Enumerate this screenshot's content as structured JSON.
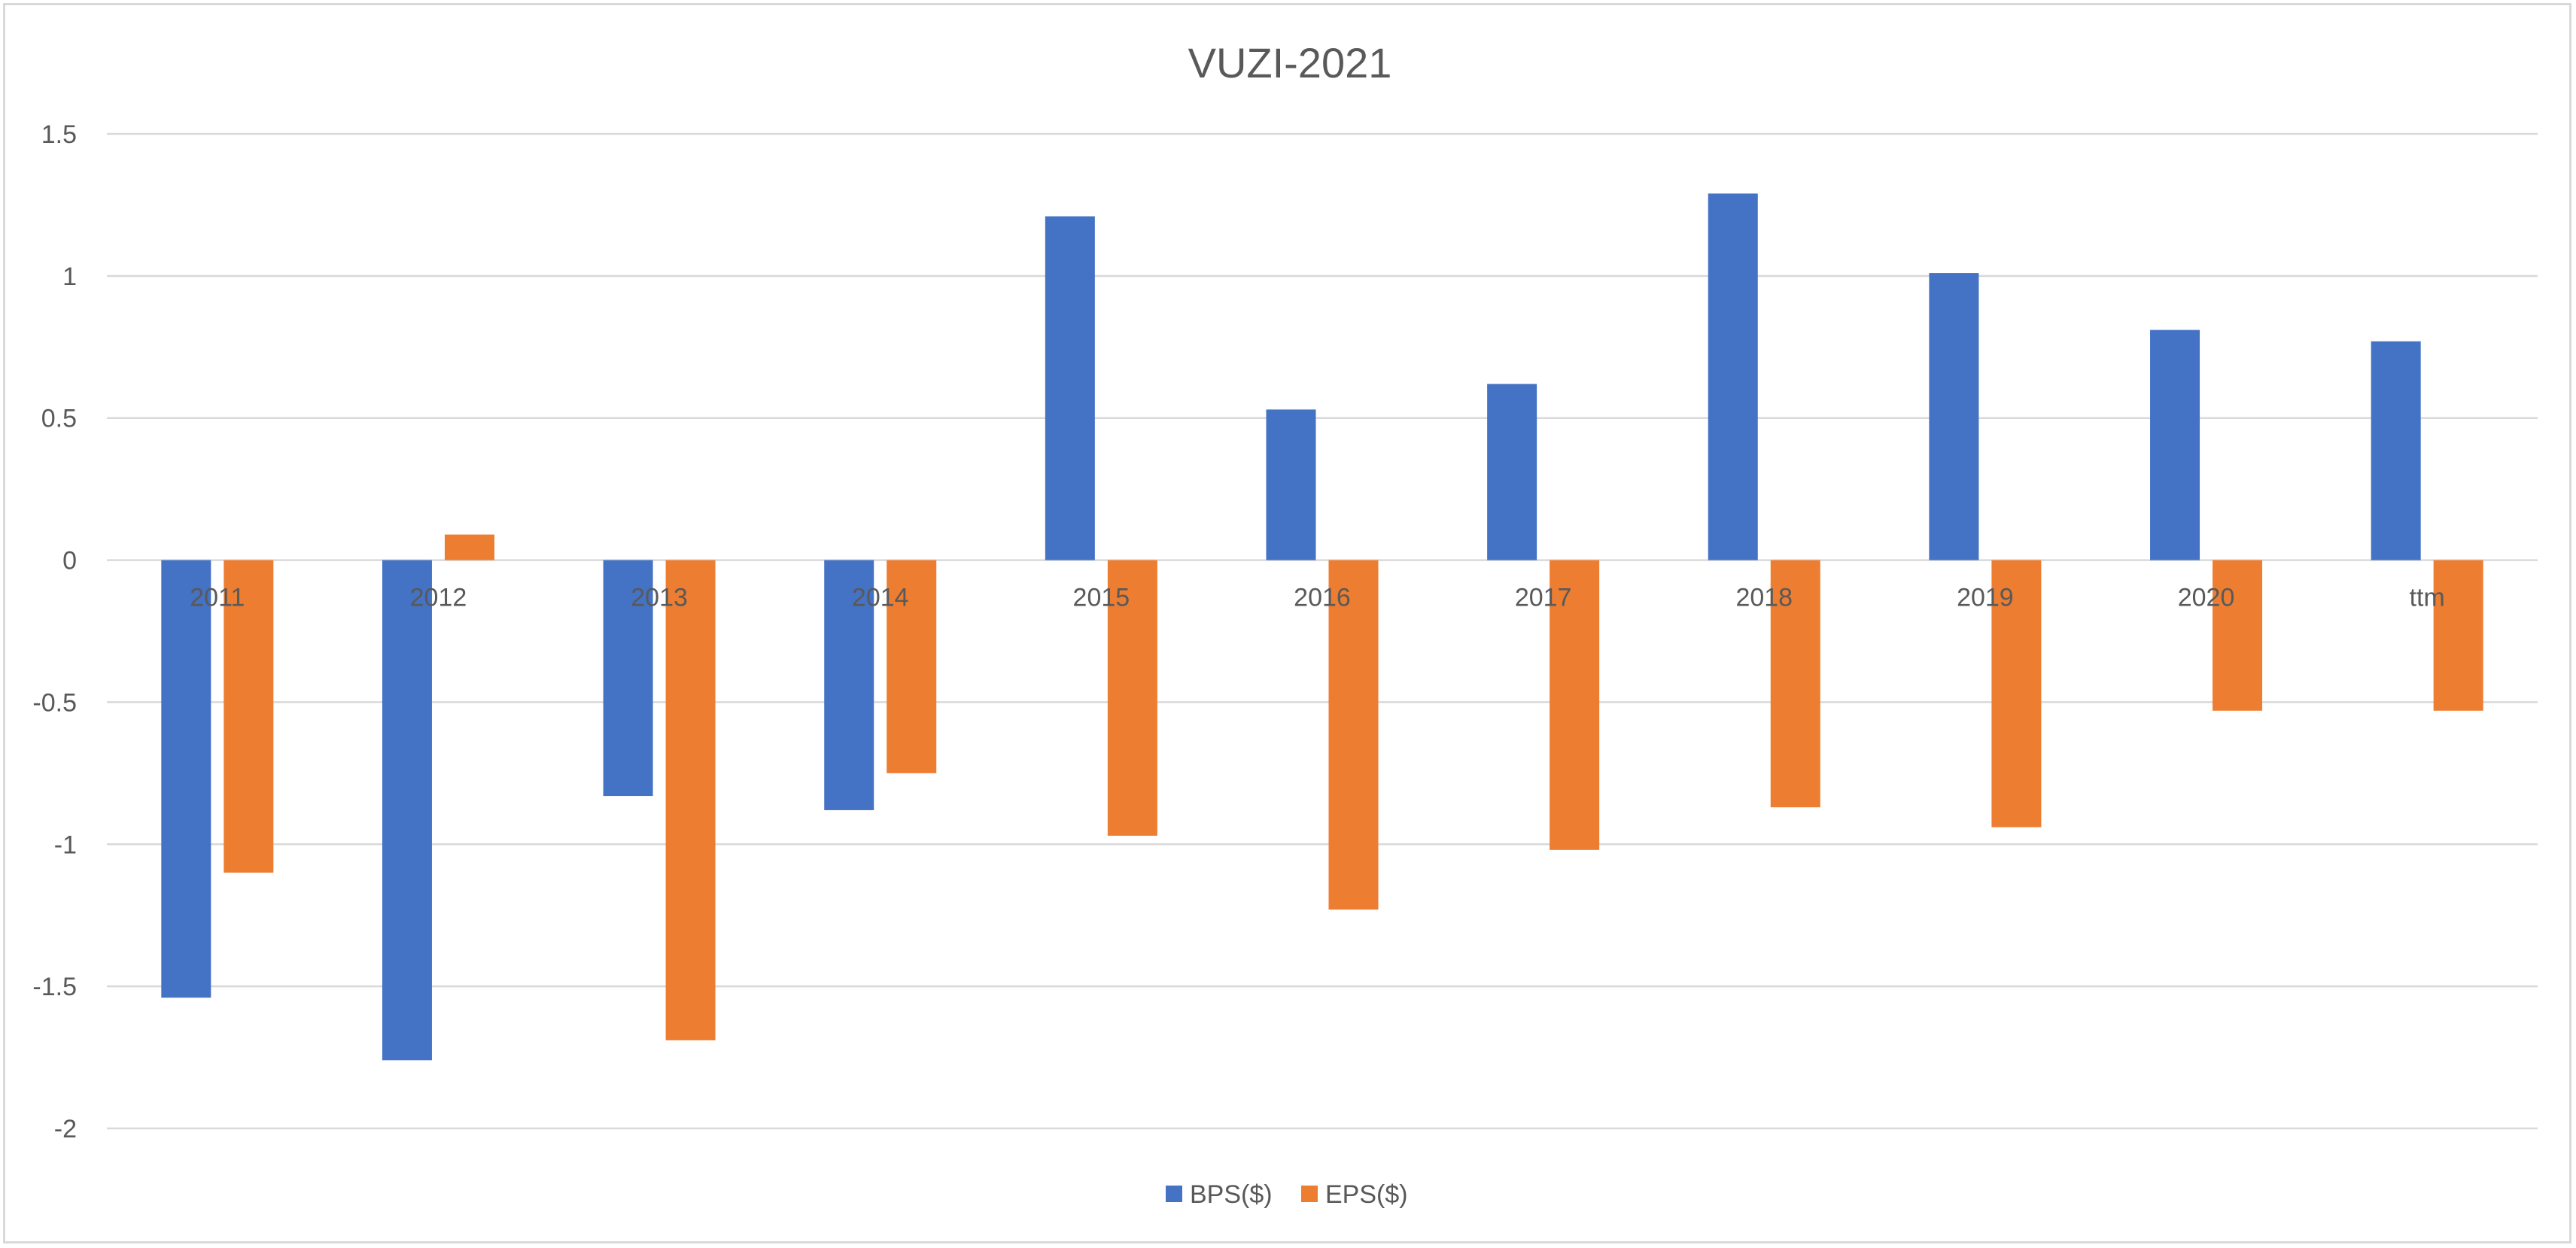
{
  "chart_data": {
    "type": "bar",
    "title": "VUZI-2021",
    "xlabel": "",
    "ylabel": "",
    "categories": [
      "2011",
      "2012",
      "2013",
      "2014",
      "2015",
      "2016",
      "2017",
      "2018",
      "2019",
      "2020",
      "ttm"
    ],
    "series": [
      {
        "name": "BPS($)",
        "color": "#4472C4",
        "values": [
          -1.54,
          -1.76,
          -0.83,
          -0.88,
          1.21,
          0.53,
          0.62,
          1.29,
          1.01,
          0.81,
          0.77
        ]
      },
      {
        "name": "EPS($)",
        "color": "#ED7D31",
        "values": [
          -1.1,
          0.09,
          -1.69,
          -0.75,
          -0.97,
          -1.23,
          -1.02,
          -0.87,
          -0.94,
          -0.53,
          -0.53
        ]
      }
    ],
    "ylim": [
      -2,
      1.5
    ],
    "yticks": [
      1.5,
      1,
      0.5,
      0,
      -0.5,
      -1,
      -1.5,
      -2
    ],
    "ytick_labels": [
      "1.5",
      "1",
      "0.5",
      "0",
      "-0.5",
      "-1",
      "-1.5",
      "-2"
    ],
    "grid": true,
    "legend_position": "bottom"
  }
}
